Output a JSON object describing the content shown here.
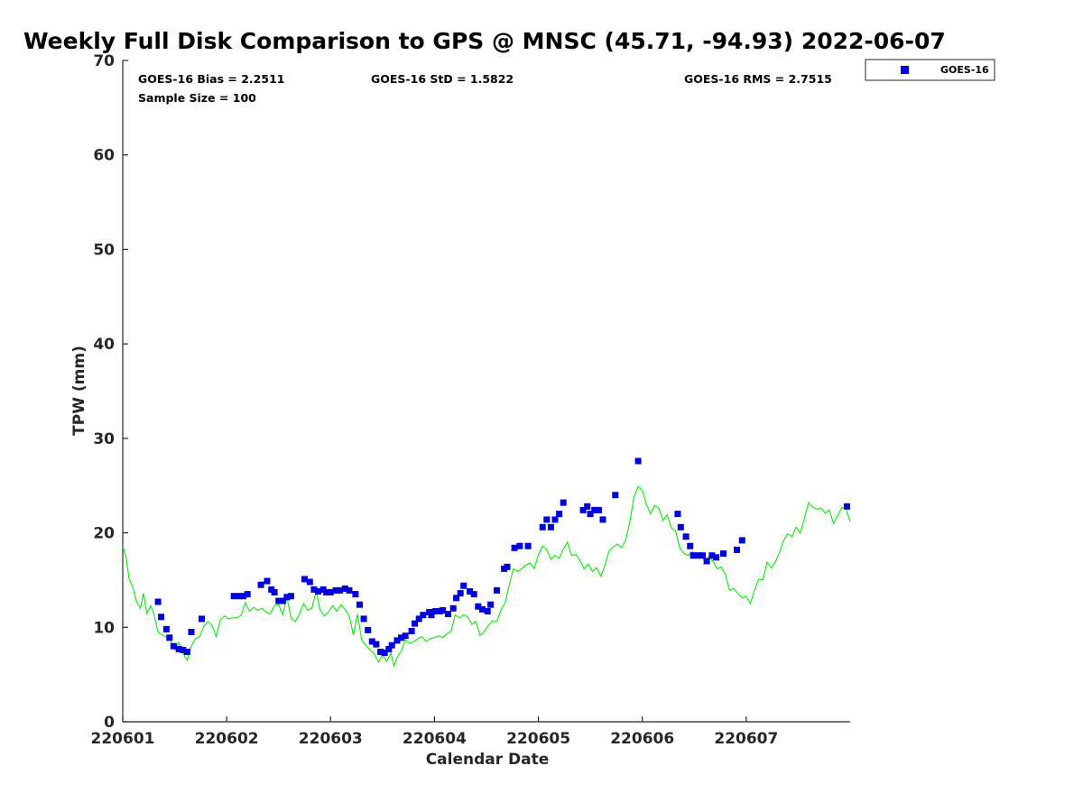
{
  "chart_data": {
    "type": "scatter",
    "title": "Weekly Full Disk Comparison to GPS @ MNSC (45.71, -94.93) 2022-06-07",
    "xlabel": "Calendar Date",
    "ylabel": "TPW (mm)",
    "xlim": [
      220601,
      220608
    ],
    "ylim": [
      0,
      70
    ],
    "x_ticks": [
      {
        "v": 220601,
        "label": "220601"
      },
      {
        "v": 220602,
        "label": "220602"
      },
      {
        "v": 220603,
        "label": "220603"
      },
      {
        "v": 220604,
        "label": "220604"
      },
      {
        "v": 220605,
        "label": "220605"
      },
      {
        "v": 220606,
        "label": "220606"
      },
      {
        "v": 220607,
        "label": "220607"
      }
    ],
    "y_ticks": [
      0,
      10,
      20,
      30,
      40,
      50,
      60,
      70
    ],
    "grid": false,
    "legend_position": "outside-top-right",
    "stats": {
      "bias": "GOES-16 Bias = 2.2511",
      "std": "GOES-16 StD = 1.5822",
      "rms": "GOES-16 RMS = 2.7515",
      "sample": "Sample Size = 100"
    },
    "series": [
      {
        "name": "GOES-16",
        "marker": "square",
        "color": "#0000e0",
        "points": [
          [
            220601.34,
            12.7
          ],
          [
            220601.37,
            11.1
          ],
          [
            220601.42,
            9.8
          ],
          [
            220601.45,
            8.9
          ],
          [
            220601.49,
            8.0
          ],
          [
            220601.54,
            7.7
          ],
          [
            220601.58,
            7.6
          ],
          [
            220601.62,
            7.4
          ],
          [
            220601.66,
            9.5
          ],
          [
            220601.76,
            10.9
          ],
          [
            220602.07,
            13.3
          ],
          [
            220602.12,
            13.3
          ],
          [
            220602.16,
            13.3
          ],
          [
            220602.2,
            13.5
          ],
          [
            220602.33,
            14.5
          ],
          [
            220602.39,
            14.9
          ],
          [
            220602.43,
            14.0
          ],
          [
            220602.46,
            13.7
          ],
          [
            220602.5,
            12.8
          ],
          [
            220602.54,
            12.8
          ],
          [
            220602.58,
            13.2
          ],
          [
            220602.62,
            13.3
          ],
          [
            220602.75,
            15.1
          ],
          [
            220602.8,
            14.8
          ],
          [
            220602.84,
            14.0
          ],
          [
            220602.88,
            13.8
          ],
          [
            220602.93,
            14.0
          ],
          [
            220602.96,
            13.7
          ],
          [
            220603.0,
            13.7
          ],
          [
            220603.05,
            13.9
          ],
          [
            220603.09,
            13.9
          ],
          [
            220603.14,
            14.1
          ],
          [
            220603.18,
            13.9
          ],
          [
            220603.24,
            13.5
          ],
          [
            220603.28,
            12.4
          ],
          [
            220603.32,
            10.9
          ],
          [
            220603.36,
            9.7
          ],
          [
            220603.4,
            8.5
          ],
          [
            220603.44,
            8.2
          ],
          [
            220603.48,
            7.4
          ],
          [
            220603.52,
            7.3
          ],
          [
            220603.56,
            7.7
          ],
          [
            220603.59,
            8.1
          ],
          [
            220603.64,
            8.6
          ],
          [
            220603.68,
            8.9
          ],
          [
            220603.72,
            9.1
          ],
          [
            220603.78,
            9.6
          ],
          [
            220603.81,
            10.4
          ],
          [
            220603.85,
            10.9
          ],
          [
            220603.89,
            11.3
          ],
          [
            220603.95,
            11.6
          ],
          [
            220603.97,
            11.3
          ],
          [
            220604.01,
            11.7
          ],
          [
            220604.05,
            11.7
          ],
          [
            220604.08,
            11.8
          ],
          [
            220604.13,
            11.4
          ],
          [
            220604.18,
            12.0
          ],
          [
            220604.21,
            13.1
          ],
          [
            220604.25,
            13.6
          ],
          [
            220604.28,
            14.4
          ],
          [
            220604.34,
            13.8
          ],
          [
            220604.38,
            13.5
          ],
          [
            220604.42,
            12.2
          ],
          [
            220604.46,
            11.9
          ],
          [
            220604.51,
            11.7
          ],
          [
            220604.54,
            12.4
          ],
          [
            220604.6,
            13.9
          ],
          [
            220604.67,
            16.2
          ],
          [
            220604.7,
            16.4
          ],
          [
            220604.77,
            18.4
          ],
          [
            220604.82,
            18.6
          ],
          [
            220604.9,
            18.6
          ],
          [
            220605.04,
            20.6
          ],
          [
            220605.08,
            21.4
          ],
          [
            220605.12,
            20.6
          ],
          [
            220605.16,
            21.4
          ],
          [
            220605.2,
            22.0
          ],
          [
            220605.24,
            23.2
          ],
          [
            220605.43,
            22.4
          ],
          [
            220605.47,
            22.8
          ],
          [
            220605.5,
            22.0
          ],
          [
            220605.54,
            22.4
          ],
          [
            220605.58,
            22.4
          ],
          [
            220605.62,
            21.4
          ],
          [
            220605.74,
            24.0
          ],
          [
            220605.96,
            27.6
          ],
          [
            220606.34,
            22.0
          ],
          [
            220606.37,
            20.6
          ],
          [
            220606.42,
            19.6
          ],
          [
            220606.46,
            18.6
          ],
          [
            220606.49,
            17.6
          ],
          [
            220606.54,
            17.6
          ],
          [
            220606.58,
            17.6
          ],
          [
            220606.62,
            17.0
          ],
          [
            220606.67,
            17.6
          ],
          [
            220606.71,
            17.4
          ],
          [
            220606.78,
            17.8
          ],
          [
            220606.91,
            18.2
          ],
          [
            220606.96,
            19.2
          ],
          [
            220607.97,
            22.8
          ]
        ]
      },
      {
        "name": "",
        "type": "line",
        "color": "#00ee00",
        "points": [
          [
            220601.0,
            18.5
          ],
          [
            220601.03,
            17.6
          ],
          [
            220601.06,
            15.2
          ],
          [
            220601.1,
            14.1
          ],
          [
            220601.13,
            12.8
          ],
          [
            220601.17,
            12.0
          ],
          [
            220601.2,
            13.6
          ],
          [
            220601.23,
            11.5
          ],
          [
            220601.27,
            12.3
          ],
          [
            220601.3,
            11.4
          ],
          [
            220601.34,
            9.5
          ],
          [
            220601.38,
            9.2
          ],
          [
            220601.42,
            9.0
          ],
          [
            220601.46,
            8.6
          ],
          [
            220601.5,
            7.6
          ],
          [
            220601.54,
            8.4
          ],
          [
            220601.58,
            7.2
          ],
          [
            220601.62,
            6.5
          ],
          [
            220601.66,
            8.0
          ],
          [
            220601.7,
            8.8
          ],
          [
            220601.74,
            9.0
          ],
          [
            220601.78,
            10.1
          ],
          [
            220601.82,
            10.6
          ],
          [
            220601.86,
            10.2
          ],
          [
            220601.9,
            9.0
          ],
          [
            220601.94,
            10.8
          ],
          [
            220601.98,
            11.2
          ],
          [
            220602.02,
            10.9
          ],
          [
            220602.06,
            11.0
          ],
          [
            220602.1,
            11.0
          ],
          [
            220602.14,
            11.3
          ],
          [
            220602.18,
            12.6
          ],
          [
            220602.22,
            11.7
          ],
          [
            220602.26,
            12.1
          ],
          [
            220602.3,
            11.8
          ],
          [
            220602.34,
            12.0
          ],
          [
            220602.38,
            11.6
          ],
          [
            220602.42,
            11.4
          ],
          [
            220602.46,
            12.3
          ],
          [
            220602.5,
            12.4
          ],
          [
            220602.54,
            11.3
          ],
          [
            220602.58,
            13.2
          ],
          [
            220602.62,
            11.0
          ],
          [
            220602.66,
            10.6
          ],
          [
            220602.7,
            11.4
          ],
          [
            220602.74,
            12.5
          ],
          [
            220602.78,
            11.8
          ],
          [
            220602.82,
            12.0
          ],
          [
            220602.86,
            13.8
          ],
          [
            220602.9,
            11.8
          ],
          [
            220602.94,
            11.2
          ],
          [
            220602.98,
            11.6
          ],
          [
            220603.02,
            12.3
          ],
          [
            220603.06,
            11.7
          ],
          [
            220603.1,
            12.4
          ],
          [
            220603.14,
            11.9
          ],
          [
            220603.18,
            11.2
          ],
          [
            220603.22,
            9.2
          ],
          [
            220603.26,
            11.4
          ],
          [
            220603.3,
            8.6
          ],
          [
            220603.34,
            8.1
          ],
          [
            220603.38,
            7.6
          ],
          [
            220603.42,
            7.2
          ],
          [
            220603.46,
            6.3
          ],
          [
            220603.5,
            7.1
          ],
          [
            220603.54,
            6.4
          ],
          [
            220603.58,
            7.3
          ],
          [
            220603.61,
            5.9
          ],
          [
            220603.64,
            6.8
          ],
          [
            220603.68,
            7.5
          ],
          [
            220603.72,
            8.7
          ],
          [
            220603.76,
            8.3
          ],
          [
            220603.8,
            8.5
          ],
          [
            220603.84,
            8.8
          ],
          [
            220603.88,
            9.0
          ],
          [
            220603.92,
            8.5
          ],
          [
            220603.96,
            8.8
          ],
          [
            220604.0,
            8.9
          ],
          [
            220604.04,
            9.1
          ],
          [
            220604.08,
            8.9
          ],
          [
            220604.12,
            9.3
          ],
          [
            220604.16,
            9.6
          ],
          [
            220604.2,
            11.3
          ],
          [
            220604.24,
            11.0
          ],
          [
            220604.28,
            11.3
          ],
          [
            220604.32,
            11.1
          ],
          [
            220604.36,
            10.3
          ],
          [
            220604.4,
            10.6
          ],
          [
            220604.44,
            9.1
          ],
          [
            220604.48,
            9.6
          ],
          [
            220604.52,
            10.2
          ],
          [
            220604.56,
            10.7
          ],
          [
            220604.6,
            10.6
          ],
          [
            220604.64,
            11.8
          ],
          [
            220604.68,
            12.6
          ],
          [
            220604.72,
            14.5
          ],
          [
            220604.76,
            16.2
          ],
          [
            220604.8,
            15.9
          ],
          [
            220604.84,
            16.2
          ],
          [
            220604.88,
            16.6
          ],
          [
            220604.92,
            16.8
          ],
          [
            220604.96,
            16.2
          ],
          [
            220605.0,
            17.7
          ],
          [
            220605.04,
            18.6
          ],
          [
            220605.08,
            18.2
          ],
          [
            220605.12,
            17.2
          ],
          [
            220605.16,
            17.6
          ],
          [
            220605.2,
            17.3
          ],
          [
            220605.24,
            18.3
          ],
          [
            220605.28,
            19.0
          ],
          [
            220605.32,
            17.6
          ],
          [
            220605.36,
            17.7
          ],
          [
            220605.4,
            17.1
          ],
          [
            220605.44,
            16.2
          ],
          [
            220605.48,
            16.7
          ],
          [
            220605.52,
            15.9
          ],
          [
            220605.56,
            16.3
          ],
          [
            220605.6,
            15.4
          ],
          [
            220605.64,
            16.6
          ],
          [
            220605.68,
            18.1
          ],
          [
            220605.72,
            18.5
          ],
          [
            220605.76,
            18.8
          ],
          [
            220605.8,
            18.4
          ],
          [
            220605.84,
            19.2
          ],
          [
            220605.88,
            21.2
          ],
          [
            220605.92,
            23.8
          ],
          [
            220605.96,
            24.9
          ],
          [
            220606.0,
            24.5
          ],
          [
            220606.04,
            23.0
          ],
          [
            220606.08,
            22.0
          ],
          [
            220606.12,
            22.9
          ],
          [
            220606.16,
            22.6
          ],
          [
            220606.2,
            21.3
          ],
          [
            220606.24,
            21.9
          ],
          [
            220606.28,
            20.5
          ],
          [
            220606.32,
            20.2
          ],
          [
            220606.36,
            18.4
          ],
          [
            220606.4,
            17.8
          ],
          [
            220606.44,
            17.6
          ],
          [
            220606.48,
            18.0
          ],
          [
            220606.52,
            17.5
          ],
          [
            220606.56,
            17.9
          ],
          [
            220606.6,
            17.0
          ],
          [
            220606.64,
            17.5
          ],
          [
            220606.68,
            17.0
          ],
          [
            220606.72,
            16.2
          ],
          [
            220606.76,
            16.4
          ],
          [
            220606.8,
            15.6
          ],
          [
            220606.84,
            13.9
          ],
          [
            220606.88,
            14.1
          ],
          [
            220606.92,
            13.6
          ],
          [
            220606.96,
            13.1
          ],
          [
            220607.0,
            13.3
          ],
          [
            220607.04,
            12.5
          ],
          [
            220607.08,
            14.0
          ],
          [
            220607.12,
            15.1
          ],
          [
            220607.16,
            15.0
          ],
          [
            220607.2,
            16.9
          ],
          [
            220607.24,
            16.3
          ],
          [
            220607.28,
            16.9
          ],
          [
            220607.32,
            17.9
          ],
          [
            220607.36,
            19.2
          ],
          [
            220607.4,
            19.9
          ],
          [
            220607.44,
            19.6
          ],
          [
            220607.48,
            20.6
          ],
          [
            220607.52,
            20.0
          ],
          [
            220607.56,
            21.5
          ],
          [
            220607.6,
            23.2
          ],
          [
            220607.64,
            22.7
          ],
          [
            220607.68,
            22.5
          ],
          [
            220607.72,
            22.6
          ],
          [
            220607.76,
            22.1
          ],
          [
            220607.8,
            22.4
          ],
          [
            220607.84,
            21.0
          ],
          [
            220607.88,
            21.8
          ],
          [
            220607.92,
            22.7
          ],
          [
            220607.96,
            22.5
          ],
          [
            220608.0,
            21.2
          ]
        ]
      }
    ]
  }
}
